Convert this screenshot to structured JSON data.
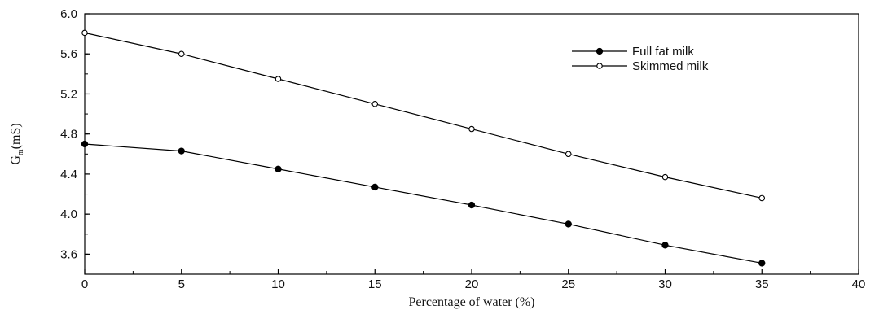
{
  "chart_data": {
    "type": "line",
    "xlabel": "Percentage of water (%)",
    "ylabel": {
      "main": "G",
      "sub": "m",
      "unit": "(mS)"
    },
    "xlim": [
      0,
      40
    ],
    "ylim": [
      3.4,
      6.0
    ],
    "xticks": [
      "0",
      "5",
      "10",
      "15",
      "20",
      "25",
      "30",
      "35",
      "40"
    ],
    "yticks": [
      "3.6",
      "4.0",
      "4.4",
      "4.8",
      "5.2",
      "5.6",
      "6.0"
    ],
    "grid": false,
    "legend_position": "top-right",
    "x": [
      0,
      5,
      10,
      15,
      20,
      25,
      30,
      35
    ],
    "series": [
      {
        "name": "Full fat milk",
        "marker": "filled-circle",
        "color": "#000000",
        "values": [
          4.7,
          4.63,
          4.45,
          4.27,
          4.09,
          3.9,
          3.69,
          3.51
        ]
      },
      {
        "name": "Skimmed milk",
        "marker": "open-circle",
        "color": "#000000",
        "values": [
          5.81,
          5.6,
          5.35,
          5.1,
          4.85,
          4.6,
          4.37,
          4.16
        ]
      }
    ]
  }
}
